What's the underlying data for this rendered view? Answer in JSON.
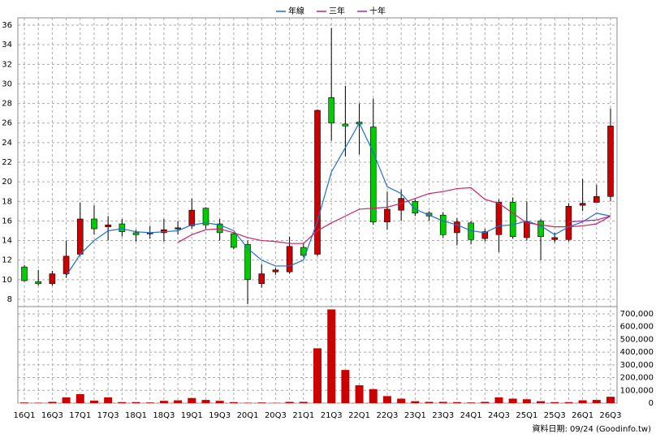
{
  "chart_data": {
    "type": "candlestick",
    "categories": [
      "16Q1",
      null,
      "16Q3",
      null,
      "17Q1",
      null,
      "17Q3",
      null,
      "18Q1",
      null,
      "18Q3",
      null,
      "19Q1",
      null,
      "19Q3",
      null,
      "20Q1",
      null,
      "20Q3",
      null,
      "21Q1",
      null,
      "21Q3",
      null,
      "22Q1",
      null,
      "22Q3",
      null,
      "23Q1",
      null,
      "23Q3",
      null,
      "24Q1",
      null,
      "24Q3",
      null,
      "25Q1",
      null,
      "25Q3",
      null,
      "26Q1",
      null,
      "26Q3"
    ],
    "open": [
      11.3,
      9.8,
      9.6,
      10.6,
      12.6,
      16.2,
      15.4,
      15.7,
      14.8,
      14.7,
      14.8,
      15.2,
      15.5,
      17.3,
      15.7,
      14.7,
      13.6,
      9.6,
      10.8,
      10.8,
      13.3,
      12.6,
      28.6,
      25.9,
      26.1,
      25.6,
      15.9,
      17.1,
      18,
      16.8,
      16.6,
      14.8,
      15.8,
      14.2,
      14.6,
      17.9,
      14.3,
      16,
      14.1,
      14.1,
      17.6,
      17.9,
      18.5
    ],
    "high": [
      11.5,
      11,
      10.9,
      14,
      17.9,
      17.6,
      16.5,
      16.2,
      15.1,
      15.5,
      16.2,
      16,
      18.3,
      17.4,
      16.2,
      14.8,
      14,
      11.6,
      11.2,
      14.4,
      13.7,
      27.4,
      35.7,
      29.8,
      28,
      28.5,
      19,
      19.2,
      18.2,
      17,
      16.9,
      16.3,
      16,
      15.2,
      18.2,
      18.4,
      18,
      16.2,
      14.8,
      17.8,
      20.3,
      19.7,
      27.5
    ],
    "low": [
      9.8,
      9.4,
      9.4,
      10.2,
      12.4,
      14.6,
      14,
      14.4,
      13.9,
      14.2,
      13.9,
      14.6,
      15.2,
      15.2,
      14,
      13.1,
      7.5,
      9.2,
      10.5,
      10.6,
      12.3,
      12.4,
      24.2,
      22.6,
      22.8,
      15.6,
      15.1,
      16,
      16.5,
      16,
      14.3,
      13.5,
      13.6,
      13.9,
      12.8,
      14.2,
      14,
      12,
      13.8,
      13.9,
      17,
      17.9,
      18
    ],
    "close": [
      9.9,
      9.6,
      10.6,
      12.4,
      16.2,
      15.2,
      15.6,
      14.9,
      14.6,
      14.8,
      15.1,
      15.3,
      17.1,
      15.6,
      14.8,
      13.3,
      10,
      10.6,
      11,
      13.4,
      12.5,
      27.3,
      26,
      25.7,
      25.9,
      15.9,
      17.2,
      18.3,
      16.8,
      16.5,
      14.6,
      15.9,
      14.1,
      14.9,
      17.9,
      14.4,
      15.9,
      14.4,
      14.3,
      17.5,
      17.8,
      18.5,
      25.7
    ],
    "up_color": "#cc0000",
    "down_color": "#00cc00",
    "series": [
      {
        "name": "年線",
        "color": "#1f6fd0",
        "values": [
          null,
          null,
          null,
          10.4,
          12.6,
          14,
          15,
          15.2,
          14.9,
          14.8,
          14.9,
          15,
          15.6,
          15.8,
          15.6,
          15,
          13.2,
          12,
          11.4,
          11.4,
          12,
          16,
          21,
          23.5,
          26,
          23,
          19.5,
          18.8,
          17.2,
          16.6,
          16,
          15.6,
          15,
          14.8,
          15.5,
          15.6,
          16,
          15.5,
          14.6,
          15.4,
          15.9,
          16.8,
          16.5
        ]
      },
      {
        "name": "三年",
        "color": "#d0206a",
        "values": [
          null,
          null,
          null,
          null,
          null,
          null,
          null,
          null,
          null,
          null,
          null,
          13.8,
          14.6,
          15.1,
          15.2,
          14.8,
          14.3,
          14,
          13.9,
          13.7,
          13.7,
          15,
          15.8,
          16.5,
          17.2,
          17.3,
          17.4,
          17.8,
          18.3,
          18.8,
          19,
          19.3,
          19.4,
          18.2,
          17.8,
          16.8,
          15.8,
          15.6,
          15.4,
          15.4,
          15.5,
          15.7,
          16.5
        ]
      },
      {
        "name": "十年",
        "color": "#9b2fa8",
        "values": [
          null,
          null,
          null,
          null,
          null,
          null,
          null,
          null,
          null,
          null,
          null,
          null,
          null,
          null,
          null,
          null,
          null,
          null,
          null,
          null,
          null,
          null,
          null,
          null,
          null,
          null,
          null,
          null,
          null,
          null,
          null,
          null,
          null,
          null,
          null,
          null,
          null,
          null,
          null,
          15.9,
          16,
          16.1,
          16.5
        ]
      }
    ],
    "ylim": [
      7.25,
      36.75
    ],
    "yticks": [
      8,
      10,
      12,
      14,
      16,
      18,
      20,
      22,
      24,
      26,
      28,
      30,
      32,
      34,
      36
    ],
    "grid": true,
    "volume": {
      "color": "#cc0000",
      "values": [
        5000,
        3000,
        10000,
        45000,
        70000,
        20000,
        45000,
        8000,
        8000,
        5000,
        18000,
        22000,
        40000,
        25000,
        18000,
        8000,
        3000,
        5000,
        2000,
        10000,
        10000,
        430000,
        735000,
        260000,
        140000,
        110000,
        55000,
        35000,
        15000,
        10000,
        10000,
        8000,
        5000,
        10000,
        45000,
        35000,
        30000,
        15000,
        8000,
        8000,
        22000,
        25000,
        50000
      ],
      "ylim": [
        0,
        757000
      ],
      "yticks": [
        0,
        {
          "value": 100000,
          "label": "100,000"
        },
        {
          "value": 200000,
          "label": "200,000"
        },
        {
          "value": 300000,
          "label": "300,000"
        },
        {
          "value": 400000,
          "label": "400,000"
        },
        {
          "value": 500000,
          "label": "500,000"
        },
        {
          "value": 600000,
          "label": "600,000"
        },
        {
          "value": 700000,
          "label": "700,000"
        }
      ]
    },
    "footer": "資料日期: 09/24  (Goodinfo.tw)"
  }
}
